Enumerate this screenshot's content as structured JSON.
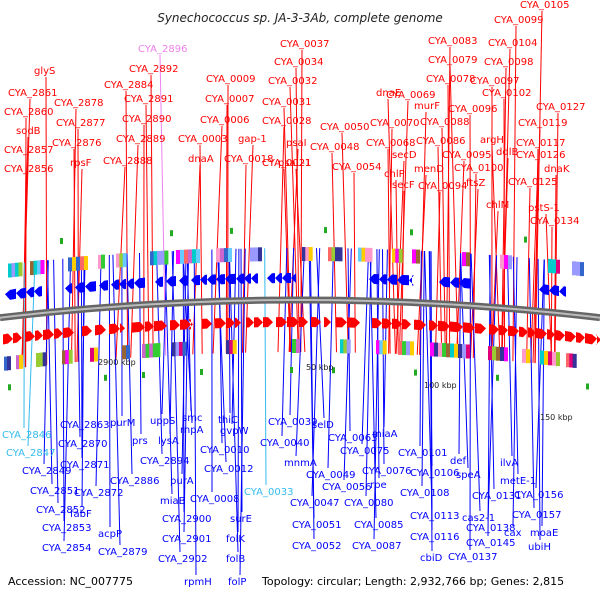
{
  "title": "Synechococcus sp. JA-3-3Ab, complete genome",
  "footer": {
    "accession": "Accession: NC_007775",
    "summary": "Topology: circular; Length: 2,932,766 bp; Genes: 2,815"
  },
  "scale_labels": [
    "2900 kbp",
    "50 kbp",
    "100 kbp",
    "150 kbp"
  ],
  "colors": {
    "forward": "#ff0000",
    "reverse": "#0000ff",
    "forward_highlight": "#ee82ee",
    "reverse_highlight": "#33bbee",
    "backbone": "#888888"
  },
  "forward_labels": [
    "CYA_2896",
    "CYA_2892",
    "glyS",
    "CYA_2861",
    "CYA_2860",
    "sodB",
    "CYA_2857",
    "CYA_2856",
    "CYA_2878",
    "CYA_2877",
    "CYA_2876",
    "rpsF",
    "CYA_2884",
    "CYA_2891",
    "CYA_2890",
    "CYA_2889",
    "CYA_2888",
    "CYA_0009",
    "CYA_0007",
    "CYA_0006",
    "CYA_0003",
    "dnaA",
    "gap-1",
    "CYA_0018",
    "CYA_0037",
    "CYA_0034",
    "CYA_0032",
    "CYA_0031",
    "CYA_0028",
    "psaI",
    "CYA_0021",
    "psaL-1",
    "CYA_0050",
    "CYA_0048",
    "CYA_0054",
    "dnaE",
    "CYA_0069",
    "CYA_0070",
    "CYA_0068",
    "secD",
    "chlP",
    "secF",
    "CYA_0083",
    "CYA_0079",
    "CYA_0078",
    "murF",
    "CYA_0088",
    "CYA_0086",
    "menD",
    "CYA_0094",
    "CYA_0105",
    "CYA_0099",
    "CYA_0104",
    "CYA_0098",
    "CYA_0097",
    "CYA_0102",
    "CYA_0096",
    "argH",
    "CYA_0095",
    "CYA_0100",
    "ftsZ",
    "chlM",
    "ddlB",
    "CYA_0127",
    "CYA_0119",
    "CYA_0117",
    "CYA_0126",
    "dnaK",
    "CYA_0125",
    "pstS-1",
    "CYA_0134"
  ],
  "reverse_labels": [
    "CYA_2846",
    "CYA_2847",
    "CYA_2863",
    "CYA_2870",
    "CYA_2849",
    "CYA_2871",
    "CYA_2851",
    "CYA_2872",
    "CYA_2852",
    "fabF",
    "CYA_2853",
    "acpP",
    "CYA_2854",
    "CYA_2879",
    "purM",
    "prs",
    "CYA_2886",
    "uppS",
    "lysA",
    "CYA_2894",
    "purA",
    "miaB",
    "CYA_2900",
    "CYA_2901",
    "CYA_2902",
    "rpmH",
    "smc",
    "rnpA",
    "thiC",
    "gvpW",
    "CYA_0010",
    "CYA_0012",
    "CYA_0008",
    "surE",
    "folK",
    "folB",
    "folP",
    "CYA_0033",
    "CYA_0039",
    "CYA_0040",
    "selD",
    "mnmA",
    "CYA_0049",
    "CYA_0047",
    "CYA_0051",
    "CYA_0052",
    "CYA_0063",
    "CYA_0056",
    "miaA",
    "CYA_0075",
    "CYA_0076",
    "rpe",
    "CYA_0080",
    "CYA_0085",
    "CYA_0087",
    "CYA_0101",
    "def",
    "CYA_0106",
    "CYA_0108",
    "CYA_0113",
    "CYA_0116",
    "cbiD",
    "speA",
    "CYA_0137",
    "CYA_0131",
    "cas2-1",
    "CYA_0138",
    "CYA_0145",
    "ilvA",
    "metE-1",
    "CYA_0156",
    "CYA_0157",
    "cax",
    "moaE",
    "ubiH"
  ]
}
